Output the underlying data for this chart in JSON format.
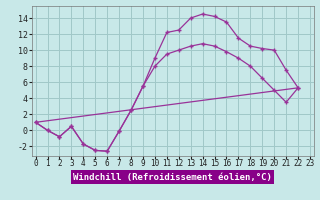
{
  "background_color": "#c8e8e8",
  "grid_color": "#a0c8c8",
  "line_color": "#993399",
  "xlim": [
    -0.3,
    23.3
  ],
  "ylim": [
    -3.2,
    15.5
  ],
  "yticks": [
    -2,
    0,
    2,
    4,
    6,
    8,
    10,
    12,
    14
  ],
  "xticks": [
    0,
    1,
    2,
    3,
    4,
    5,
    6,
    7,
    8,
    9,
    10,
    11,
    12,
    13,
    14,
    15,
    16,
    17,
    18,
    19,
    20,
    21,
    22,
    23
  ],
  "curve1_x": [
    0,
    1,
    2,
    3,
    4,
    5,
    6,
    7,
    8,
    9,
    10,
    11,
    12,
    13,
    14,
    15,
    16,
    17,
    18,
    19,
    20,
    21,
    22
  ],
  "curve1_y": [
    1.0,
    0.0,
    -0.8,
    0.5,
    -1.7,
    -2.5,
    -2.6,
    -0.1,
    2.5,
    5.5,
    9.0,
    12.2,
    12.5,
    14.0,
    14.5,
    14.2,
    13.5,
    11.5,
    10.5,
    10.2,
    10.0,
    7.5,
    5.3
  ],
  "curve2_x": [
    0,
    1,
    2,
    3,
    4,
    5,
    6,
    7,
    8,
    9,
    10,
    11,
    12,
    13,
    14,
    15,
    16,
    17,
    18,
    19,
    20,
    21,
    22
  ],
  "curve2_y": [
    1.0,
    0.0,
    -0.8,
    0.5,
    -1.7,
    -2.5,
    -2.6,
    -0.1,
    2.5,
    5.5,
    8.0,
    9.5,
    10.0,
    10.5,
    10.8,
    10.5,
    9.8,
    9.0,
    8.0,
    6.5,
    5.0,
    3.5,
    5.3
  ],
  "curve3_x": [
    0,
    22
  ],
  "curve3_y": [
    1.0,
    5.3
  ],
  "xlabel": "Windchill (Refroidissement éolien,°C)",
  "xlabel_fontsize": 6.5,
  "xlabel_bg": "#880088",
  "xlabel_fg": "#ffffff",
  "tick_fontsize": 5.5,
  "ytick_fontsize": 6
}
